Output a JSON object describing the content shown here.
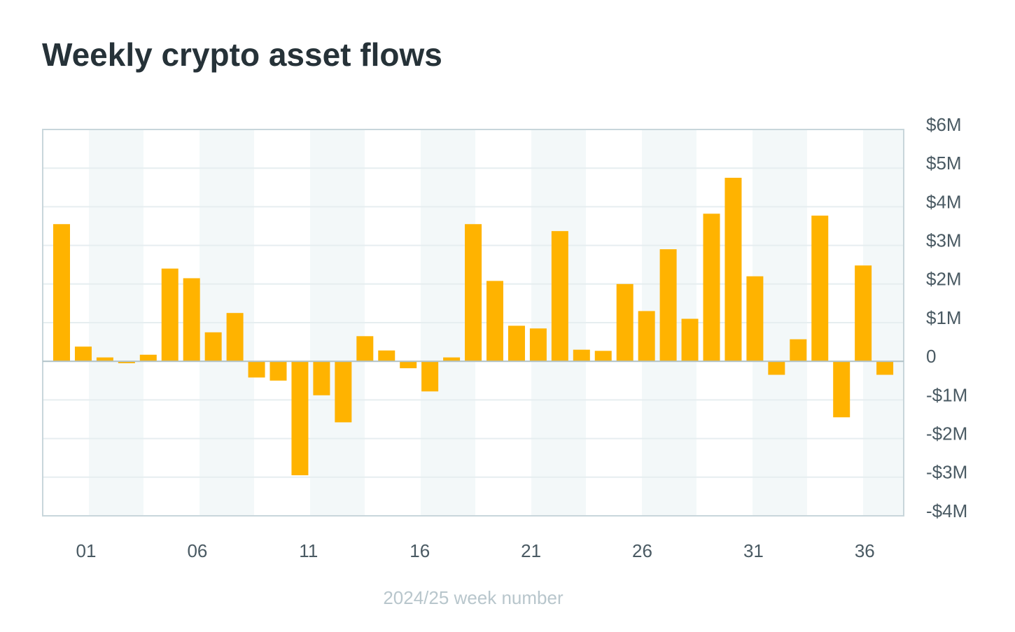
{
  "chart_data": {
    "type": "bar",
    "title": "Weekly crypto asset flows",
    "x_label": "2024/25 week number",
    "categories": [
      null,
      null,
      "01",
      null,
      null,
      null,
      null,
      "06",
      null,
      null,
      null,
      null,
      "11",
      null,
      null,
      null,
      null,
      "16",
      null,
      null,
      null,
      null,
      "21",
      null,
      null,
      null,
      null,
      "26",
      null,
      null,
      null,
      null,
      "31",
      null,
      null,
      null,
      null,
      "36",
      null
    ],
    "values": [
      3.55,
      0.38,
      0.1,
      -0.05,
      0.17,
      2.4,
      2.15,
      0.75,
      1.25,
      -0.42,
      -0.5,
      -2.95,
      -0.88,
      -1.58,
      0.65,
      0.28,
      -0.18,
      -0.78,
      0.1,
      3.55,
      2.08,
      0.92,
      0.85,
      3.37,
      0.3,
      0.27,
      2.0,
      1.3,
      2.9,
      1.1,
      3.82,
      4.75,
      2.2,
      -0.35,
      0.57,
      3.77,
      -1.45,
      2.48,
      -0.35
    ],
    "color": "#ffb300",
    "ylim": [
      -4,
      6
    ],
    "yticks": [
      {
        "value": -4,
        "label": "-$4M"
      },
      {
        "value": -3,
        "label": "-$3M"
      },
      {
        "value": -2,
        "label": "-$2M"
      },
      {
        "value": -1,
        "label": "-$1M"
      },
      0,
      {
        "value": 1,
        "label": "$1M"
      },
      {
        "value": 2,
        "label": "$2M"
      },
      {
        "value": 3,
        "label": "$3M"
      },
      {
        "value": 4,
        "label": "$4M"
      },
      {
        "value": 5,
        "label": "$5M"
      },
      {
        "value": 6,
        "label": "$6M"
      }
    ],
    "grid": true,
    "y_axis_side": "right"
  }
}
